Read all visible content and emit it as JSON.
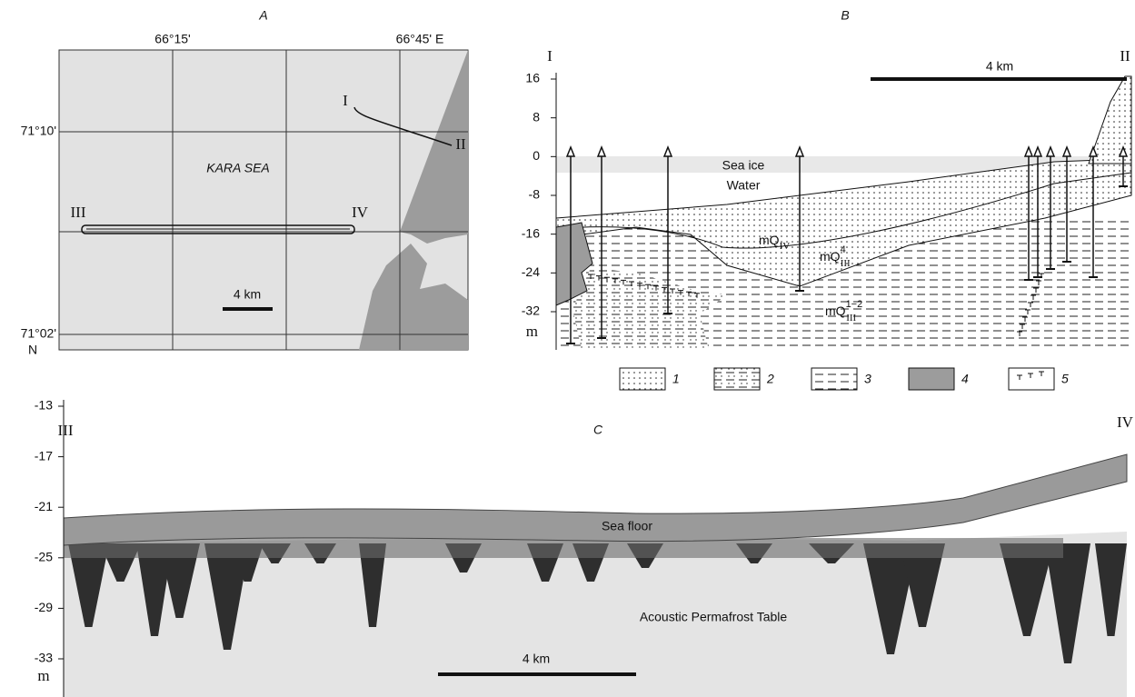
{
  "panel_a": {
    "label": "A",
    "lon_labels": [
      "66°15'",
      "66°45' E"
    ],
    "lat_labels": [
      "71°10'",
      "71°02'"
    ],
    "lat_hemisphere": "N",
    "sea": "KARA SEA",
    "scale": "4 km",
    "points": {
      "i": "I",
      "ii": "II",
      "iii": "III",
      "iv": "IV"
    }
  },
  "panel_b": {
    "label": "B",
    "start": "I",
    "end": "II",
    "scale": "4 km",
    "yticks": [
      16,
      8,
      0,
      -8,
      -16,
      -24,
      -32
    ],
    "unit": "m",
    "sea_ice": "Sea ice",
    "water": "Water",
    "units": [
      {
        "base": "mQ",
        "sub": "IV"
      },
      {
        "base": "mQ",
        "sub": "III",
        "sup": "4"
      },
      {
        "base": "mQ",
        "sub": "III",
        "sup": "1−2"
      }
    ]
  },
  "legend": [
    "1",
    "2",
    "3",
    "4",
    "5"
  ],
  "panel_c": {
    "label": "C",
    "start": "III",
    "end": "IV",
    "yticks": [
      -13,
      -17,
      -21,
      -25,
      -29,
      -33
    ],
    "unit": "m",
    "sea_floor": "Sea floor",
    "permafrost": "Acoustic Permafrost Table",
    "scale": "4 km"
  }
}
